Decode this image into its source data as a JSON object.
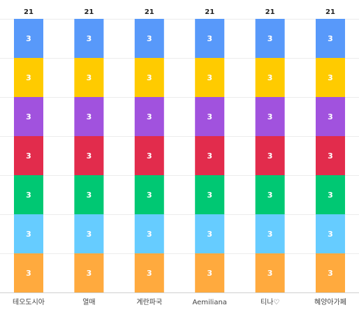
{
  "chart_data": {
    "type": "bar",
    "stacked": true,
    "categories": [
      "테오도시아",
      "열매",
      "계란파국",
      "Aemiliana",
      "티나♡",
      "혜양아가페"
    ],
    "totals": [
      21,
      21,
      21,
      21,
      21,
      21
    ],
    "series": [
      {
        "values": [
          3,
          3,
          3,
          3,
          3,
          3
        ],
        "color": "#FFAA3E"
      },
      {
        "values": [
          3,
          3,
          3,
          3,
          3,
          3
        ],
        "color": "#66CCFF"
      },
      {
        "values": [
          3,
          3,
          3,
          3,
          3,
          3
        ],
        "color": "#00C873"
      },
      {
        "values": [
          3,
          3,
          3,
          3,
          3,
          3
        ],
        "color": "#E22C4C"
      },
      {
        "values": [
          3,
          3,
          3,
          3,
          3,
          3
        ],
        "color": "#A152DE"
      },
      {
        "values": [
          3,
          3,
          3,
          3,
          3,
          3
        ],
        "color": "#FFCB00"
      },
      {
        "values": [
          3,
          3,
          3,
          3,
          3,
          3
        ],
        "color": "#5899FA"
      }
    ],
    "ylim": [
      0,
      21
    ],
    "grid": true,
    "legend": "none",
    "data_labels": true
  }
}
